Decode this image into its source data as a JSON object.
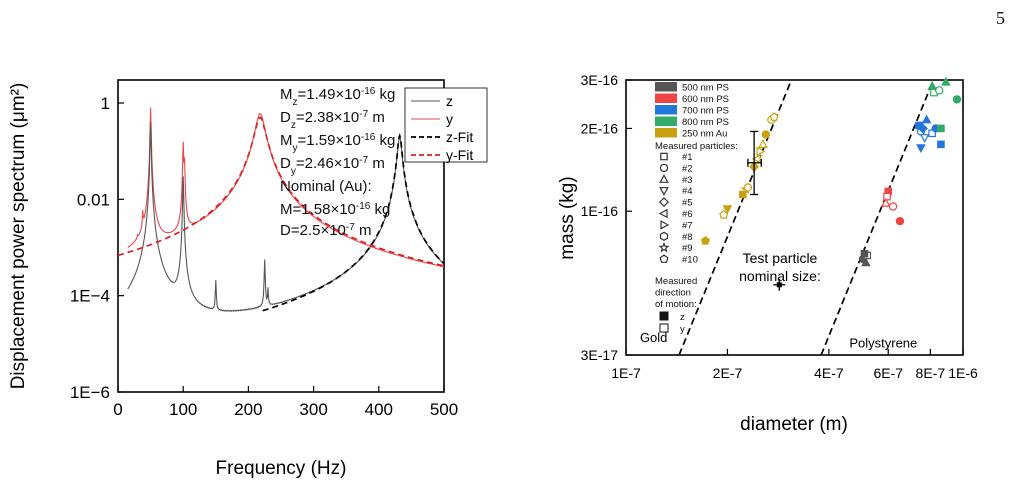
{
  "page_number": "5",
  "chart_data": [
    {
      "type": "line",
      "title": "",
      "xlabel": "Frequency (Hz)",
      "ylabel": "Displacement power spectrum (μm²)",
      "xlim": [
        0,
        500
      ],
      "ylim": [
        1e-06,
        3
      ],
      "yscale": "log",
      "xticks": [
        0,
        100,
        200,
        300,
        400,
        500
      ],
      "xtick_labels": [
        "0",
        "100",
        "200",
        "300",
        "400",
        "500"
      ],
      "yticks": [
        1e-06,
        0.0001,
        0.01,
        1
      ],
      "ytick_labels": [
        "1E−6",
        "1E−4",
        "0.01",
        "1"
      ],
      "legend_position": "top-right",
      "series": [
        {
          "name": "z",
          "style": "solid",
          "color": "#555555",
          "peak_hz": 432,
          "peak_value": 0.2
        },
        {
          "name": "y",
          "style": "solid",
          "color": "#e8454a",
          "peak_hz": 218,
          "peak_value": 0.6
        },
        {
          "name": "z-Fit",
          "style": "dashed",
          "color": "#000000",
          "peak_hz": 432
        },
        {
          "name": "y-Fit",
          "style": "dashed",
          "color": "#dd2222",
          "peak_hz": 218
        }
      ],
      "annotations": [
        {
          "label": "M",
          "sub": "z",
          "text": "=1.49×10",
          "exp": "-16",
          "unit": " kg"
        },
        {
          "label": "D",
          "sub": "z",
          "text": "=2.38×10",
          "exp": "-7",
          "unit": " m"
        },
        {
          "label": "M",
          "sub": "y",
          "text": "=1.59×10",
          "exp": "-16",
          "unit": " kg"
        },
        {
          "label": "D",
          "sub": "y",
          "text": "=2.46×10",
          "exp": "-7",
          "unit": " m"
        }
      ],
      "nominal_title": "Nominal (Au):",
      "nominal_lines": [
        {
          "text": "M=1.58×10",
          "exp": "-16",
          "unit": " kg"
        },
        {
          "text": "D=2.5×10",
          "exp": "-7",
          "unit": " m"
        }
      ]
    },
    {
      "type": "scatter",
      "title": "",
      "xlabel": "diameter (m)",
      "ylabel": "mass (kg)",
      "xscale": "log",
      "yscale": "log",
      "xlim": [
        1e-07,
        1e-06
      ],
      "ylim": [
        3e-17,
        3e-16
      ],
      "xticks": [
        1e-07,
        2e-07,
        4e-07,
        6e-07,
        8e-07,
        1e-06
      ],
      "xtick_labels": [
        "1E-7",
        "2E-7",
        "4E-7",
        "6E-7",
        "8E-7",
        "1E-6"
      ],
      "yticks": [
        3e-17,
        1e-16,
        2e-16,
        3e-16
      ],
      "ytick_labels": [
        "3E-17",
        "1E-16",
        "2E-16",
        "3E-16"
      ],
      "legend_position": "top-left",
      "material_legend": [
        {
          "name": "500 nm PS",
          "color": "#555555"
        },
        {
          "name": "600 nm PS",
          "color": "#ee4444"
        },
        {
          "name": "700 nm PS",
          "color": "#2277dd"
        },
        {
          "name": "800 nm PS",
          "color": "#33aa66"
        },
        {
          "name": "250 nm Au",
          "color": "#c8a010"
        }
      ],
      "particles_title": "Measured particles:",
      "particles": [
        {
          "label": "#1",
          "marker": "square"
        },
        {
          "label": "#2",
          "marker": "circle"
        },
        {
          "label": "#3",
          "marker": "triangle-up"
        },
        {
          "label": "#4",
          "marker": "triangle-down"
        },
        {
          "label": "#5",
          "marker": "diamond"
        },
        {
          "label": "#6",
          "marker": "triangle-left"
        },
        {
          "label": "#7",
          "marker": "triangle-right"
        },
        {
          "label": "#8",
          "marker": "hexagon"
        },
        {
          "label": "#9",
          "marker": "star"
        },
        {
          "label": "#10",
          "marker": "pentagon"
        }
      ],
      "direction_title": [
        "Measured",
        "direction",
        "of motion:"
      ],
      "direction": [
        {
          "label": "z",
          "fill": "filled"
        },
        {
          "label": "y",
          "fill": "open"
        }
      ],
      "reference_lines": [
        {
          "label": "Gold",
          "density": 19300
        },
        {
          "label": "Polystyrene",
          "density": 1050
        }
      ],
      "nominal_label": [
        "Test particle",
        "nominal size:"
      ],
      "nominal_point": {
        "x": 2.85e-07,
        "y": 5.4e-17
      },
      "points": [
        {
          "x": 5.05e-07,
          "y": 6.7e-17,
          "color": "#555555",
          "marker": "circle",
          "fill": "filled"
        },
        {
          "x": 5.15e-07,
          "y": 6.5e-17,
          "color": "#555555",
          "marker": "triangle-up",
          "fill": "filled"
        },
        {
          "x": 5.2e-07,
          "y": 6.9e-17,
          "color": "#555555",
          "marker": "square",
          "fill": "open"
        },
        {
          "x": 5.1e-07,
          "y": 7e-17,
          "color": "#555555",
          "marker": "square",
          "fill": "filled"
        },
        {
          "x": 6e-07,
          "y": 1.18e-16,
          "color": "#ee4444",
          "marker": "square",
          "fill": "filled"
        },
        {
          "x": 5.95e-07,
          "y": 1.13e-16,
          "color": "#ee4444",
          "marker": "square",
          "fill": "open"
        },
        {
          "x": 5.9e-07,
          "y": 1.07e-16,
          "color": "#ee4444",
          "marker": "triangle-up",
          "fill": "open"
        },
        {
          "x": 6.2e-07,
          "y": 1.04e-16,
          "color": "#ee4444",
          "marker": "circle",
          "fill": "open"
        },
        {
          "x": 6.5e-07,
          "y": 9.2e-17,
          "color": "#ee4444",
          "marker": "circle",
          "fill": "filled"
        },
        {
          "x": 7.4e-07,
          "y": 2.05e-16,
          "color": "#2277dd",
          "marker": "square",
          "fill": "filled"
        },
        {
          "x": 7.5e-07,
          "y": 1.95e-16,
          "color": "#2277dd",
          "marker": "circle",
          "fill": "open"
        },
        {
          "x": 7.6e-07,
          "y": 2e-16,
          "color": "#2277dd",
          "marker": "diamond",
          "fill": "filled"
        },
        {
          "x": 7.8e-07,
          "y": 2.15e-16,
          "color": "#2277dd",
          "marker": "triangle-up",
          "fill": "filled"
        },
        {
          "x": 7.7e-07,
          "y": 1.85e-16,
          "color": "#2277dd",
          "marker": "triangle-down",
          "fill": "open"
        },
        {
          "x": 7.5e-07,
          "y": 1.7e-16,
          "color": "#2277dd",
          "marker": "triangle-down",
          "fill": "filled"
        },
        {
          "x": 8.1e-07,
          "y": 1.92e-16,
          "color": "#2277dd",
          "marker": "square",
          "fill": "open"
        },
        {
          "x": 8.3e-07,
          "y": 2e-16,
          "color": "#2277dd",
          "marker": "circle",
          "fill": "filled"
        },
        {
          "x": 8.6e-07,
          "y": 1.75e-16,
          "color": "#2277dd",
          "marker": "square",
          "fill": "filled"
        },
        {
          "x": 8.1e-07,
          "y": 2.85e-16,
          "color": "#33aa66",
          "marker": "triangle-up",
          "fill": "filled"
        },
        {
          "x": 8.2e-07,
          "y": 2.7e-16,
          "color": "#33aa66",
          "marker": "square",
          "fill": "open"
        },
        {
          "x": 8.5e-07,
          "y": 2.75e-16,
          "color": "#33aa66",
          "marker": "circle",
          "fill": "open"
        },
        {
          "x": 8.9e-07,
          "y": 2.95e-16,
          "color": "#33aa66",
          "marker": "triangle-up",
          "fill": "filled"
        },
        {
          "x": 8.6e-07,
          "y": 2e-16,
          "color": "#33aa66",
          "marker": "square",
          "fill": "filled"
        },
        {
          "x": 9.6e-07,
          "y": 2.55e-16,
          "color": "#33aa66",
          "marker": "circle",
          "fill": "filled"
        },
        {
          "x": 1.72e-07,
          "y": 7.8e-17,
          "color": "#c8a010",
          "marker": "pentagon",
          "fill": "filled"
        },
        {
          "x": 1.95e-07,
          "y": 9.7e-17,
          "color": "#c8a010",
          "marker": "pentagon",
          "fill": "open"
        },
        {
          "x": 2e-07,
          "y": 1.02e-16,
          "color": "#c8a010",
          "marker": "triangle-down",
          "fill": "filled"
        },
        {
          "x": 2.22e-07,
          "y": 1.15e-16,
          "color": "#c8a010",
          "marker": "square",
          "fill": "filled"
        },
        {
          "x": 2.27e-07,
          "y": 1.2e-16,
          "color": "#c8a010",
          "marker": "star",
          "fill": "open"
        },
        {
          "x": 2.3e-07,
          "y": 1.22e-16,
          "color": "#c8a010",
          "marker": "circle",
          "fill": "open"
        },
        {
          "x": 2.4e-07,
          "y": 1.45e-16,
          "color": "#c8a010",
          "marker": "diamond",
          "fill": "filled"
        },
        {
          "x": 2.45e-07,
          "y": 1.55e-16,
          "color": "#c8a010",
          "marker": "triangle-left",
          "fill": "open"
        },
        {
          "x": 2.5e-07,
          "y": 1.65e-16,
          "color": "#c8a010",
          "marker": "triangle-right",
          "fill": "open"
        },
        {
          "x": 2.55e-07,
          "y": 1.75e-16,
          "color": "#c8a010",
          "marker": "triangle-up",
          "fill": "open"
        },
        {
          "x": 2.6e-07,
          "y": 1.9e-16,
          "color": "#c8a010",
          "marker": "circle",
          "fill": "filled"
        },
        {
          "x": 2.7e-07,
          "y": 2.15e-16,
          "color": "#c8a010",
          "marker": "circle",
          "fill": "open"
        },
        {
          "x": 2.75e-07,
          "y": 2.2e-16,
          "color": "#c8a010",
          "marker": "pentagon",
          "fill": "open"
        }
      ],
      "errorbar": {
        "x": 2.4e-07,
        "y": 1.5e-16,
        "ylow": 1.15e-16,
        "yhigh": 1.95e-16,
        "xlow": 2.3e-07,
        "xhigh": 2.52e-07
      }
    }
  ]
}
